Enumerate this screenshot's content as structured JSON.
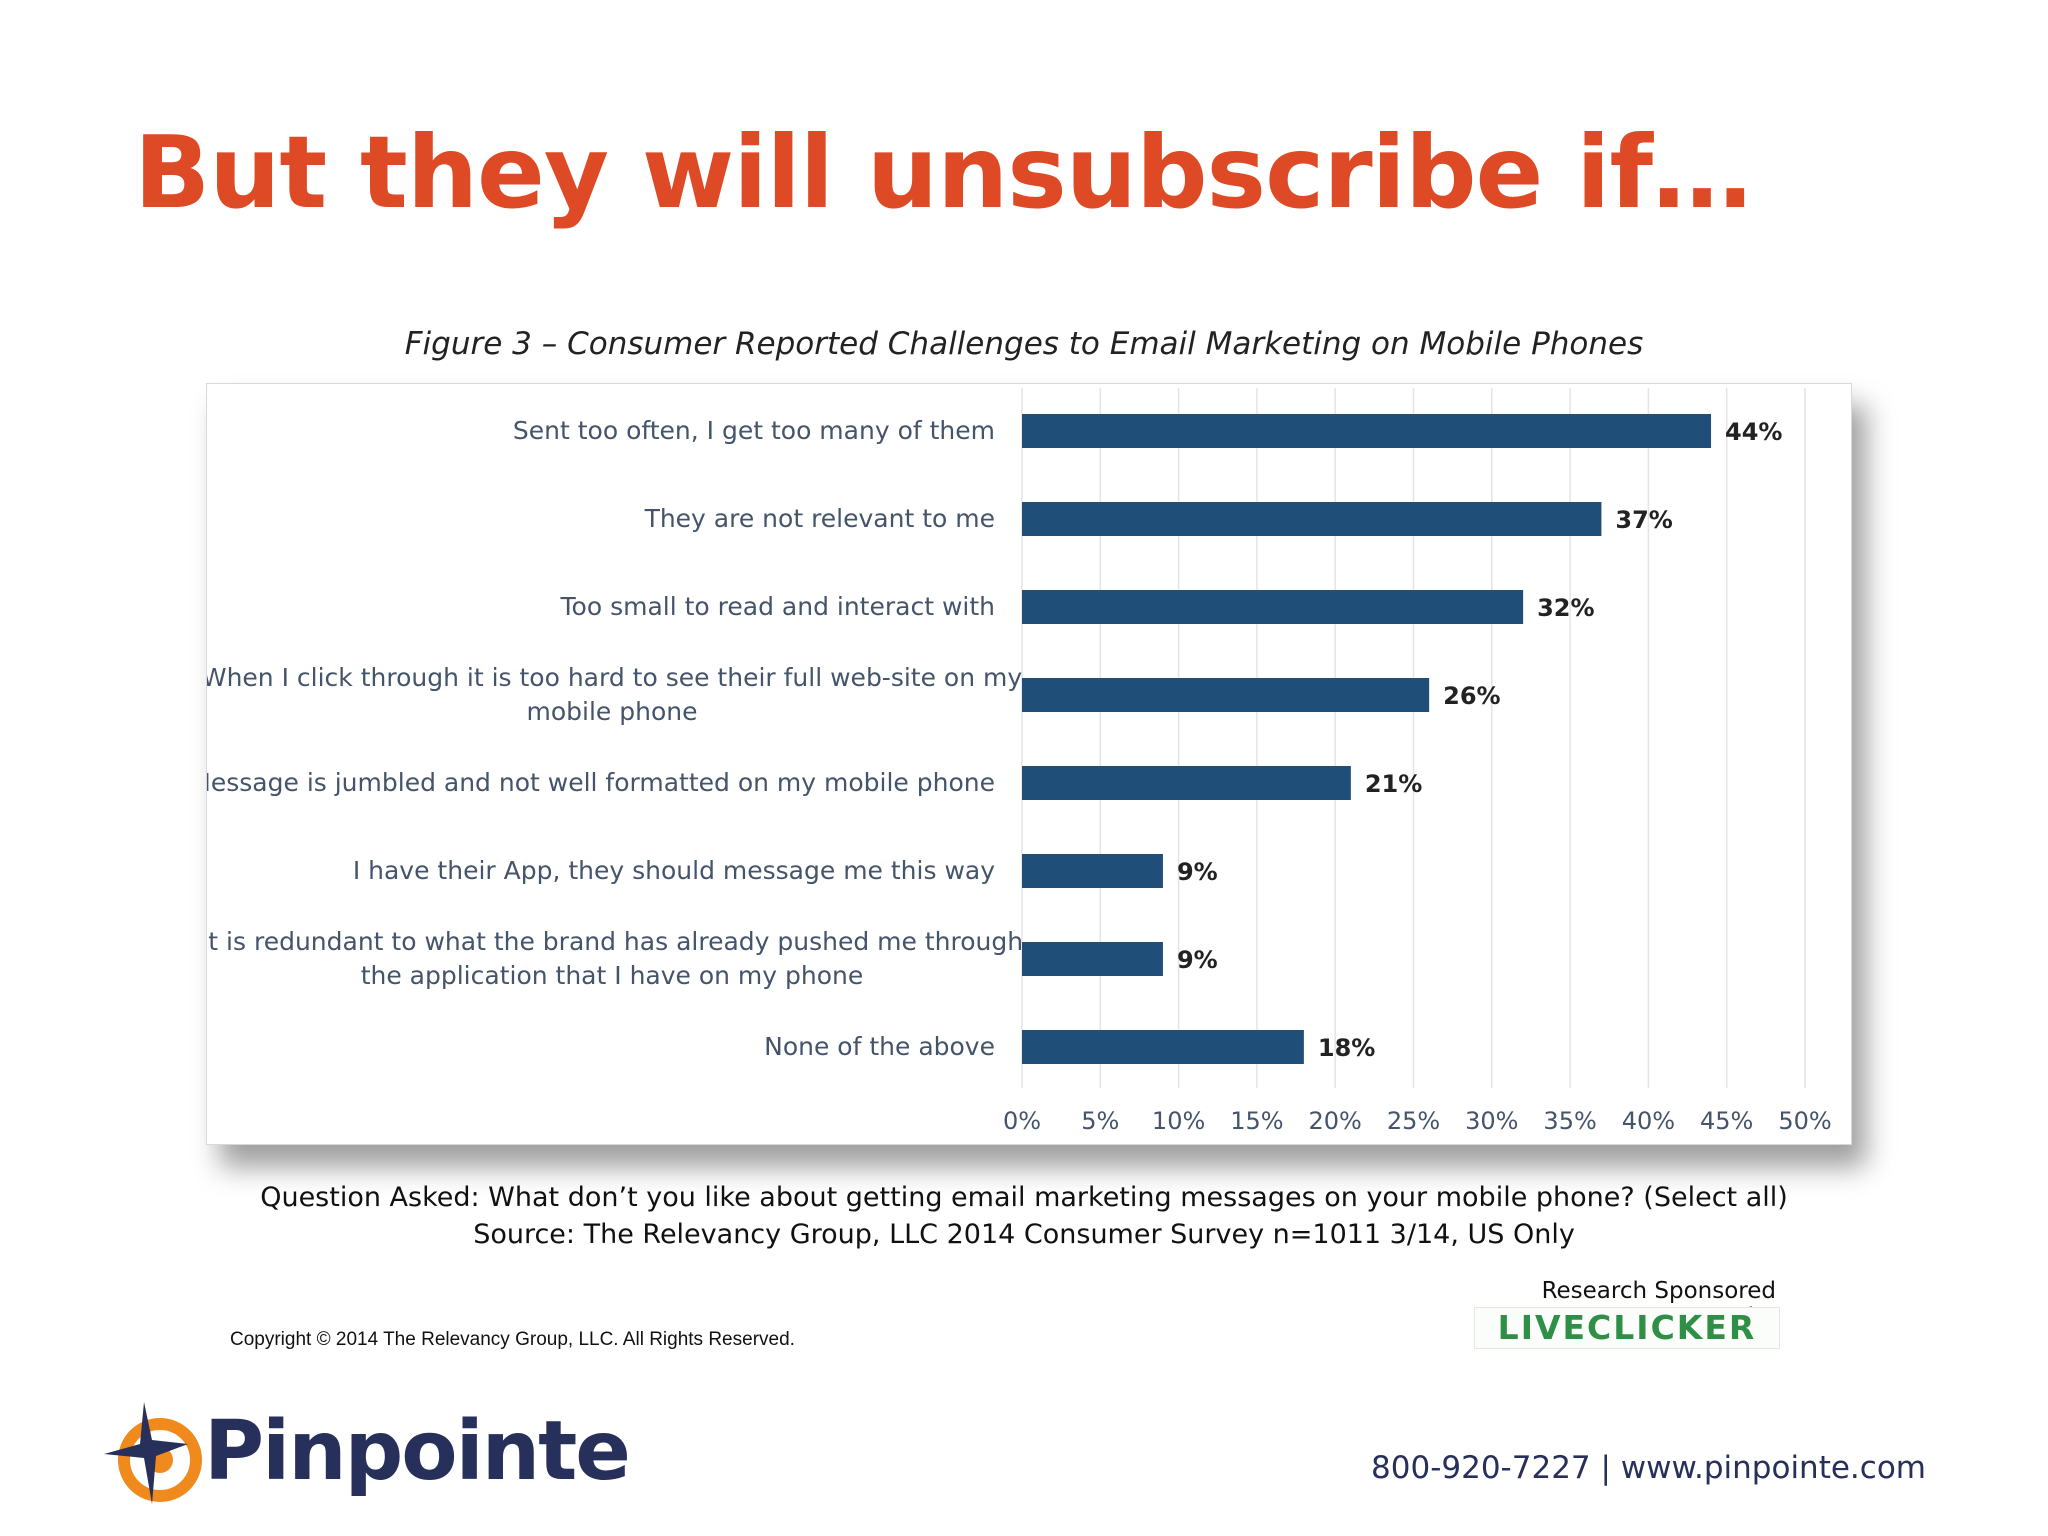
{
  "slide": {
    "headline": "But they will unsubscribe if…",
    "figure_title": "Figure 3 – Consumer Reported Challenges to Email Marketing on Mobile Phones",
    "question": "Question Asked: What don’t you like about getting email marketing messages on your mobile phone? (Select all)",
    "source": "Source: The Relevancy Group, LLC 2014 Consumer Survey n=1011 3/14, US Only",
    "copyright": "Copyright © 2014 The Relevancy Group, LLC. All Rights Reserved.",
    "sponsor_label": "Research Sponsored by",
    "sponsor_logo_text": "LIVECLICKER",
    "brand_name": "Pinpointe",
    "contact": "800-920-7227 | www.pinpointe.com"
  },
  "colors": {
    "headline": "#dd4a25",
    "bar": "#1f4e79",
    "brand_navy": "#27305a",
    "brand_orange": "#f08a1c"
  },
  "chart_data": {
    "type": "bar",
    "orientation": "horizontal",
    "categories": [
      [
        "Sent too often, I get too many of them"
      ],
      [
        "They are not relevant to me"
      ],
      [
        "Too small to read and interact with"
      ],
      [
        "When I click through it is too hard to see their full web-site on my",
        "mobile phone"
      ],
      [
        "Message is jumbled and not well formatted on my mobile phone"
      ],
      [
        "I have their App, they should message me this way"
      ],
      [
        "It is redundant to what the brand has already pushed me through",
        "the application that I have on my phone"
      ],
      [
        "None of the above"
      ]
    ],
    "values": [
      44,
      37,
      32,
      26,
      21,
      9,
      9,
      18
    ],
    "value_labels": [
      "44%",
      "37%",
      "32%",
      "26%",
      "21%",
      "9%",
      "9%",
      "18%"
    ],
    "xlim": [
      0,
      50
    ],
    "x_ticks": [
      0,
      5,
      10,
      15,
      20,
      25,
      30,
      35,
      40,
      45,
      50
    ],
    "x_tick_labels": [
      "0%",
      "5%",
      "10%",
      "15%",
      "20%",
      "25%",
      "30%",
      "35%",
      "40%",
      "45%",
      "50%"
    ],
    "grid": "vertical",
    "legend": "none"
  }
}
